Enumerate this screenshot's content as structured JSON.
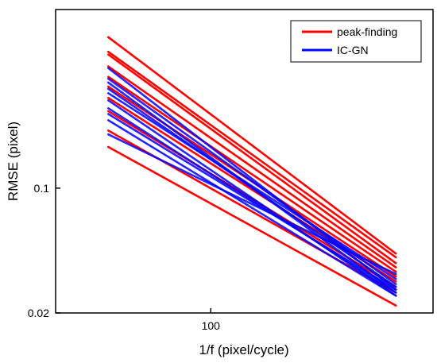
{
  "chart_data": {
    "type": "line",
    "title": "",
    "xlabel": "1/f (pixel/cycle)",
    "ylabel": "RMSE (pixel)",
    "x_scale": "log",
    "y_scale": "log",
    "xlim": [
      35,
      450
    ],
    "ylim": [
      0.02,
      1.0
    ],
    "x_ticks": [
      100
    ],
    "x_tick_labels": [
      "100"
    ],
    "y_ticks": [
      0.02,
      0.1
    ],
    "y_tick_labels": [
      "0.02",
      "0.1"
    ],
    "grid": false,
    "legend": {
      "position": "top-right",
      "entries": [
        {
          "label": "peak-finding",
          "color": "#ff0000"
        },
        {
          "label": "IC-GN",
          "color": "#0000ff"
        }
      ]
    },
    "series": [
      {
        "group": "peak-finding",
        "color": "#ff0000",
        "x": [
          50,
          350
        ],
        "y": [
          0.7,
          0.043
        ]
      },
      {
        "group": "peak-finding",
        "color": "#ff0000",
        "x": [
          50,
          350
        ],
        "y": [
          0.58,
          0.041
        ]
      },
      {
        "group": "peak-finding",
        "color": "#ff0000",
        "x": [
          50,
          350
        ],
        "y": [
          0.56,
          0.038
        ]
      },
      {
        "group": "peak-finding",
        "color": "#ff0000",
        "x": [
          50,
          350
        ],
        "y": [
          0.48,
          0.036
        ]
      },
      {
        "group": "peak-finding",
        "color": "#ff0000",
        "x": [
          50,
          350
        ],
        "y": [
          0.42,
          0.034
        ]
      },
      {
        "group": "peak-finding",
        "color": "#ff0000",
        "x": [
          50,
          350
        ],
        "y": [
          0.37,
          0.032
        ]
      },
      {
        "group": "peak-finding",
        "color": "#ff0000",
        "x": [
          50,
          350
        ],
        "y": [
          0.32,
          0.03
        ]
      },
      {
        "group": "peak-finding",
        "color": "#ff0000",
        "x": [
          50,
          350
        ],
        "y": [
          0.27,
          0.028
        ]
      },
      {
        "group": "peak-finding",
        "color": "#ff0000",
        "x": [
          50,
          350
        ],
        "y": [
          0.21,
          0.026
        ]
      },
      {
        "group": "peak-finding",
        "color": "#ff0000",
        "x": [
          50,
          350
        ],
        "y": [
          0.17,
          0.022
        ]
      },
      {
        "group": "IC-GN",
        "color": "#0000ff",
        "x": [
          50,
          350
        ],
        "y": [
          0.47,
          0.027
        ]
      },
      {
        "group": "IC-GN",
        "color": "#0000ff",
        "x": [
          50,
          350
        ],
        "y": [
          0.41,
          0.029
        ]
      },
      {
        "group": "IC-GN",
        "color": "#0000ff",
        "x": [
          50,
          350
        ],
        "y": [
          0.39,
          0.026
        ]
      },
      {
        "group": "IC-GN",
        "color": "#0000ff",
        "x": [
          50,
          350
        ],
        "y": [
          0.36,
          0.028
        ]
      },
      {
        "group": "IC-GN",
        "color": "#0000ff",
        "x": [
          50,
          350
        ],
        "y": [
          0.34,
          0.031
        ]
      },
      {
        "group": "IC-GN",
        "color": "#0000ff",
        "x": [
          50,
          350
        ],
        "y": [
          0.31,
          0.025
        ]
      },
      {
        "group": "IC-GN",
        "color": "#0000ff",
        "x": [
          50,
          350
        ],
        "y": [
          0.28,
          0.026
        ]
      },
      {
        "group": "IC-GN",
        "color": "#0000ff",
        "x": [
          50,
          350
        ],
        "y": [
          0.26,
          0.027
        ]
      },
      {
        "group": "IC-GN",
        "color": "#0000ff",
        "x": [
          50,
          350
        ],
        "y": [
          0.24,
          0.025
        ]
      },
      {
        "group": "IC-GN",
        "color": "#0000ff",
        "x": [
          50,
          350
        ],
        "y": [
          0.2,
          0.033
        ]
      }
    ]
  }
}
